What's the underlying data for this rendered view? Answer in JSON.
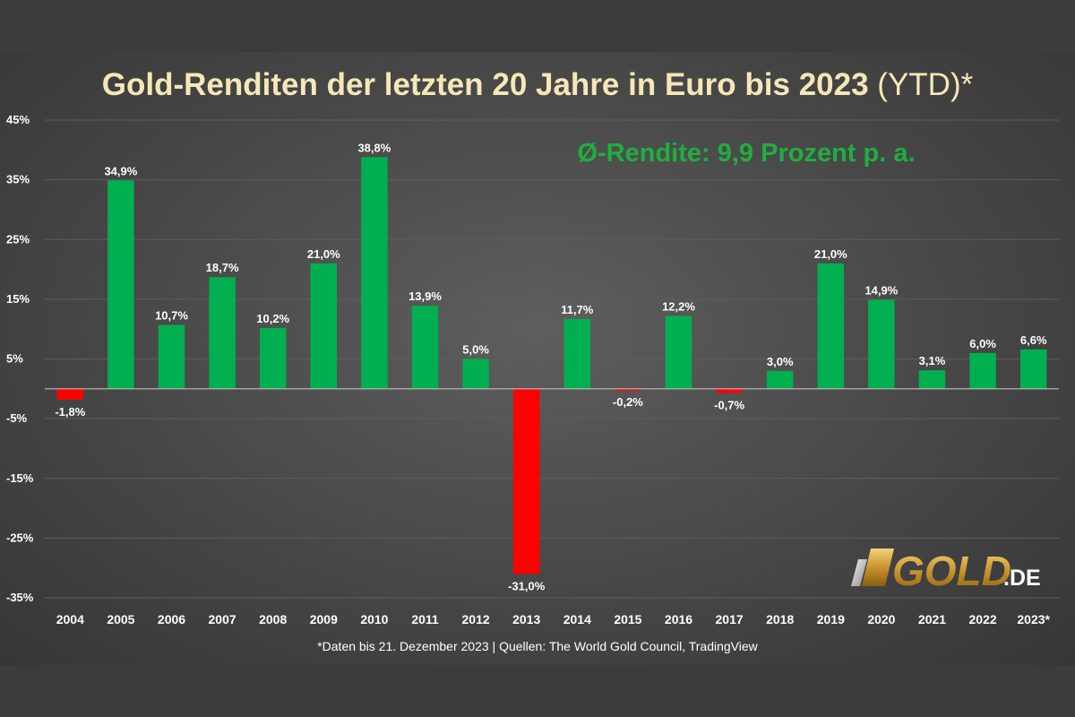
{
  "chart_data": {
    "type": "bar",
    "title": "Gold-Renditen der letzten 20 Jahre in Euro bis 2023",
    "title_suffix": " (YTD)*",
    "annotation": "Ø-Rendite: 9,9 Prozent p. a.",
    "footnote": "*Daten bis 21. Dezember 2023 | Quellen: The World Gold Council, TradingView",
    "categories": [
      "2004",
      "2005",
      "2006",
      "2007",
      "2008",
      "2009",
      "2010",
      "2011",
      "2012",
      "2013",
      "2014",
      "2015",
      "2016",
      "2017",
      "2018",
      "2019",
      "2020",
      "2021",
      "2022",
      "2023*"
    ],
    "values": [
      -1.8,
      34.9,
      10.7,
      18.7,
      10.2,
      21.0,
      38.8,
      13.9,
      5.0,
      -31.0,
      11.7,
      -0.2,
      12.2,
      -0.7,
      3.0,
      21.0,
      14.9,
      3.1,
      6.0,
      6.6
    ],
    "data_labels": [
      "-1,8%",
      "34,9%",
      "10,7%",
      "18,7%",
      "10,2%",
      "21,0%",
      "38,8%",
      "13,9%",
      "5,0%",
      "-31,0%",
      "11,7%",
      "-0,2%",
      "12,2%",
      "-0,7%",
      "3,0%",
      "21,0%",
      "14,9%",
      "3,1%",
      "6,0%",
      "6,6%"
    ],
    "y_ticks": [
      45,
      35,
      25,
      15,
      5,
      -5,
      -15,
      -25,
      -35
    ],
    "y_tick_labels": [
      "45%",
      "35%",
      "25%",
      "15%",
      "5%",
      "-5%",
      "-15%",
      "-25%",
      "-35%"
    ],
    "ylim": [
      -35,
      45
    ],
    "grid": true,
    "colors": {
      "positive": "#00b050",
      "negative": "#ff0000",
      "title": "#f6e7b7",
      "annotation": "#1fae3f"
    }
  },
  "logo": {
    "text": "GOLD",
    "suffix": ".DE"
  }
}
